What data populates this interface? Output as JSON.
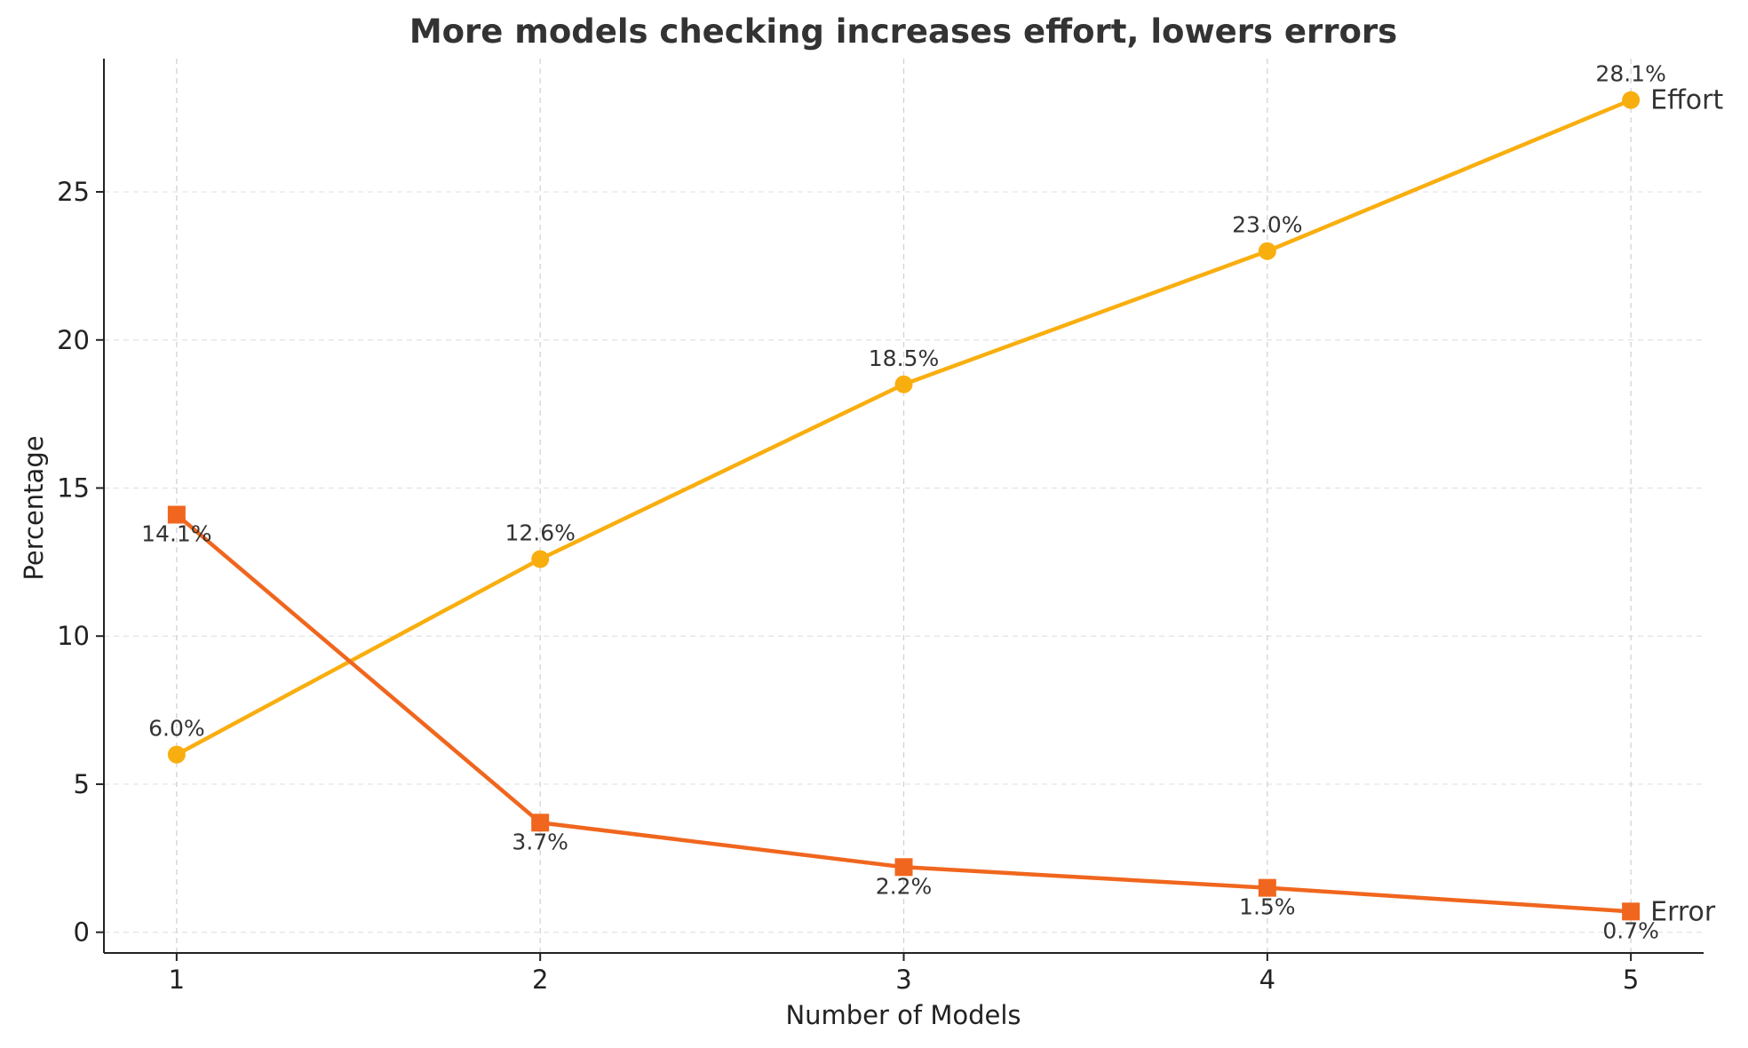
{
  "chart_data": {
    "type": "line",
    "title": "More models checking increases effort, lowers errors",
    "xlabel": "Number of Models",
    "ylabel": "Percentage",
    "x": [
      1,
      2,
      3,
      4,
      5
    ],
    "xlim": [
      0.8,
      5.2
    ],
    "ylim": [
      -0.7,
      29.5
    ],
    "xticks": [
      "1",
      "2",
      "3",
      "4",
      "5"
    ],
    "yticks": [
      0,
      5,
      10,
      15,
      20,
      25
    ],
    "ytick_labels": [
      "0",
      "5",
      "10",
      "15",
      "20",
      "25"
    ],
    "grid": true,
    "legend": "none (series labeled at line ends)",
    "series": [
      {
        "name": "Effort",
        "color": "#F9AE0F",
        "marker": "circle",
        "values": [
          6.0,
          12.6,
          18.5,
          23.0,
          28.1
        ],
        "labels": [
          "6.0%",
          "12.6%",
          "18.5%",
          "23.0%",
          "28.1%"
        ],
        "label_position": "above"
      },
      {
        "name": "Error",
        "color": "#F0661E",
        "marker": "square",
        "values": [
          14.1,
          3.7,
          2.2,
          1.5,
          0.7
        ],
        "labels": [
          "14.1%",
          "3.7%",
          "2.2%",
          "1.5%",
          "0.7%"
        ],
        "label_position": "below"
      }
    ]
  }
}
